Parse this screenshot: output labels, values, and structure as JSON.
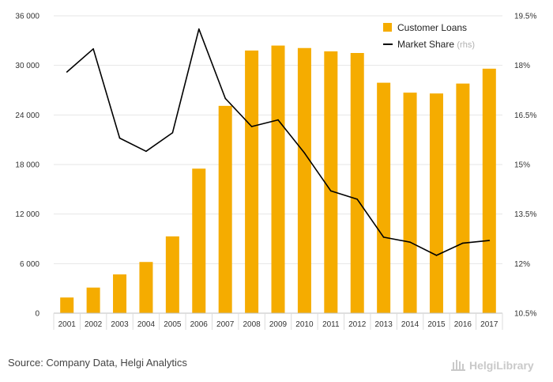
{
  "chart_data": {
    "type": "bar+line",
    "categories": [
      "2001",
      "2002",
      "2003",
      "2004",
      "2005",
      "2006",
      "2007",
      "2008",
      "2009",
      "2010",
      "2011",
      "2012",
      "2013",
      "2014",
      "2015",
      "2016",
      "2017"
    ],
    "series": [
      {
        "name": "Customer Loans",
        "type": "bar",
        "axis": "left",
        "color": "#f5ac00",
        "values": [
          1900,
          3100,
          4700,
          6200,
          9300,
          17500,
          25100,
          31800,
          32400,
          32100,
          31700,
          31500,
          27900,
          26700,
          26600,
          27800,
          29600
        ]
      },
      {
        "name": "Market Share",
        "name_suffix": "(rhs)",
        "type": "line",
        "axis": "right",
        "color": "#000000",
        "values": [
          17.8,
          18.5,
          15.8,
          15.4,
          15.96,
          19.1,
          17.0,
          16.15,
          16.35,
          15.35,
          14.2,
          13.95,
          12.8,
          12.65,
          12.25,
          12.62,
          12.7
        ]
      }
    ],
    "y_left": {
      "ylim": [
        0,
        36000
      ],
      "ticks": [
        0,
        6000,
        12000,
        18000,
        24000,
        30000,
        36000
      ],
      "tick_labels": [
        "0",
        "6 000",
        "12 000",
        "18 000",
        "24 000",
        "30 000",
        "36 000"
      ]
    },
    "y_right": {
      "ylim": [
        10.5,
        19.5
      ],
      "ticks": [
        10.5,
        12,
        13.5,
        15,
        16.5,
        18,
        19.5
      ],
      "tick_labels": [
        "10.5%",
        "12%",
        "13.5%",
        "15%",
        "16.5%",
        "18%",
        "19.5%"
      ]
    },
    "grid": true,
    "legend_position": "top-right",
    "source": "Source: Company Data, Helgi Analytics",
    "brand": "HelgiLibrary"
  }
}
